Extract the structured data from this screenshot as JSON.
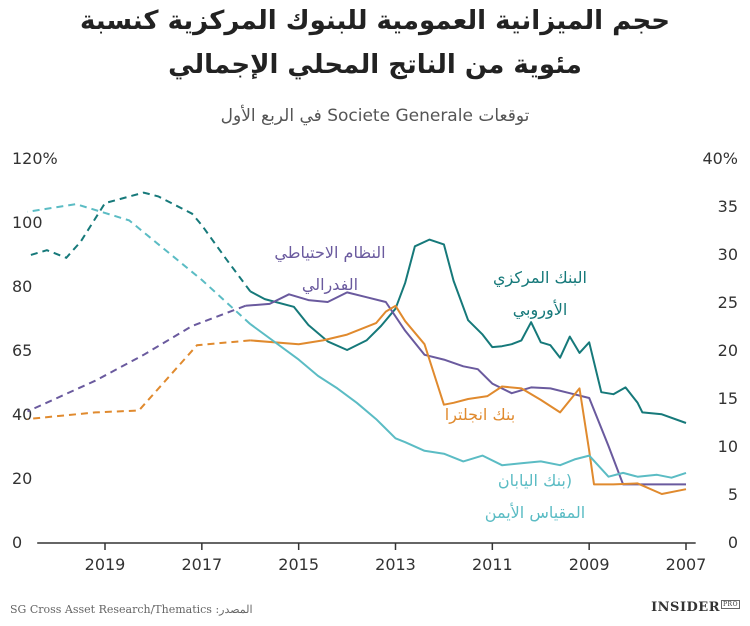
{
  "title": {
    "line1": "حجم الميزانية العمومية للبنوك المركزية كنسبة",
    "line2": "مئوية من الناتج المحلي الإجمالي"
  },
  "subtitle": "توقعات Societe Generale في الربع الأول",
  "footer": {
    "source": "SG Cross Asset Research/Thematics :المصدر",
    "brand": "INSIDER",
    "brand_badge": "PRO"
  },
  "colors": {
    "ecb": "#16797a",
    "fed": "#6a5a9e",
    "boe": "#e08a2e",
    "boj": "#5bbcc4",
    "axis": "#333333"
  },
  "chart_data": {
    "type": "line",
    "title": "حجم الميزانية العمومية للبنوك المركزية كنسبة مئوية من الناتج المحلي الإجمالي",
    "subtitle": "توقعات Societe Generale في الربع الأول",
    "x_axis": {
      "reversed": true,
      "xlim": [
        2006.9,
        2020.8
      ],
      "ticks": [
        "2019",
        "2017",
        "2015",
        "2013",
        "2011",
        "2009",
        "2007"
      ],
      "tick_values": [
        2019,
        2017,
        2015,
        2013,
        2011,
        2009,
        2007
      ]
    },
    "y_left": {
      "ticks": [
        "120%",
        "100",
        "80",
        "65",
        "40",
        "20",
        "0"
      ]
    },
    "y_right": {
      "ylim": [
        0,
        40
      ],
      "ticks": [
        "40%",
        "35",
        "30",
        "25",
        "20",
        "15",
        "10",
        "5",
        "0"
      ],
      "tick_values": [
        40,
        35,
        30,
        25,
        20,
        15,
        10,
        5,
        0
      ]
    },
    "grid": false,
    "note": "values plotted against right-hand scale (percent of GDP); dashed segments are forecasts",
    "series": [
      {
        "name": "البنك المركزي الأوروبي",
        "label_lines": [
          "البنك المركزي",
          "الأوروبي"
        ],
        "color_key": "ecb",
        "actual": {
          "x": [
            2007.0,
            2007.5,
            2007.9,
            2008.0,
            2008.25,
            2008.5,
            2008.75,
            2009.0,
            2009.2,
            2009.4,
            2009.6,
            2009.8,
            2010.0,
            2010.2,
            2010.4,
            2010.6,
            2010.8,
            2011.0,
            2011.2,
            2011.5,
            2011.8,
            2012.0,
            2012.3,
            2012.6,
            2012.8,
            2013.0,
            2013.3,
            2013.6,
            2014.0,
            2014.4,
            2014.8,
            2015.1,
            2015.7,
            2016.0
          ],
          "y": [
            12.4,
            13.3,
            13.5,
            14.5,
            16.1,
            15.4,
            15.6,
            20.8,
            19.7,
            21.4,
            19.2,
            20.5,
            20.8,
            22.9,
            21.0,
            20.6,
            20.4,
            20.3,
            21.6,
            23.1,
            27.2,
            31.0,
            31.5,
            30.8,
            27.0,
            24.3,
            22.5,
            21.0,
            20.0,
            20.9,
            22.6,
            24.5,
            25.3,
            26.1
          ]
        },
        "forecast": {
          "x": [
            2016.0,
            2016.5,
            2017.0,
            2017.2,
            2017.9,
            2018.2,
            2019.0,
            2019.5,
            2019.8,
            2020.2,
            2020.6
          ],
          "y": [
            26.1,
            29.5,
            33.0,
            34.2,
            36.0,
            36.4,
            35.3,
            31.3,
            29.6,
            30.4,
            29.8
          ]
        }
      },
      {
        "name": "النظام الاحتياطي الفدرالي",
        "label_lines": [
          "النظام الاحتياطي",
          "الفدرالي"
        ],
        "color_key": "fed",
        "actual": {
          "x": [
            2007.0,
            2007.5,
            2008.0,
            2008.3,
            2008.6,
            2009.0,
            2009.4,
            2009.8,
            2010.2,
            2010.6,
            2011.0,
            2011.3,
            2011.6,
            2012.0,
            2012.4,
            2012.8,
            2013.2,
            2013.6,
            2014.0,
            2014.4,
            2014.8,
            2015.2,
            2015.6,
            2016.1
          ],
          "y": [
            6.0,
            6.0,
            6.0,
            6.0,
            10.0,
            15.0,
            15.5,
            16.0,
            16.1,
            15.5,
            16.5,
            18.0,
            18.3,
            19.0,
            19.5,
            22.0,
            25.0,
            25.5,
            26.0,
            25.0,
            25.2,
            25.8,
            24.8,
            24.6
          ]
        },
        "forecast": {
          "x": [
            2016.1,
            2017.2,
            2018.2,
            2019.2,
            2020.6
          ],
          "y": [
            24.6,
            22.5,
            19.5,
            16.8,
            13.6
          ]
        }
      },
      {
        "name": "بنك انجلترا",
        "label_lines": [
          "بنك انجلترا"
        ],
        "color_key": "boe",
        "actual": {
          "x": [
            2007.0,
            2007.5,
            2008.0,
            2008.5,
            2008.9,
            2009.0,
            2009.2,
            2009.6,
            2010.0,
            2010.4,
            2010.8,
            2011.1,
            2011.5,
            2011.8,
            2012.0,
            2012.4,
            2012.8,
            2013.0,
            2013.2,
            2013.4,
            2014.0,
            2014.5,
            2015.0,
            2016.0
          ],
          "y": [
            5.5,
            5.0,
            6.1,
            6.0,
            6.0,
            9.5,
            16.0,
            13.5,
            14.8,
            16.0,
            16.2,
            15.2,
            14.9,
            14.5,
            14.3,
            20.6,
            23.0,
            24.6,
            24.0,
            22.8,
            21.6,
            21.0,
            20.6,
            21.0
          ]
        },
        "forecast": {
          "x": [
            2016.0,
            2017.1,
            2018.3,
            2019.2,
            2020.6
          ],
          "y": [
            21.0,
            20.5,
            13.7,
            13.5,
            12.8
          ]
        }
      },
      {
        "name": "بنك اليابان المقياس الأيمن",
        "label_lines": [
          "(بنك اليابان",
          "المقياس الأيمن"
        ],
        "color_key": "boj",
        "actual": {
          "x": [
            2007.0,
            2007.3,
            2007.6,
            2008.0,
            2008.3,
            2008.6,
            2009.0,
            2009.3,
            2009.6,
            2010.0,
            2010.4,
            2010.8,
            2011.2,
            2011.6,
            2012.0,
            2012.4,
            2012.8,
            2013.0,
            2013.4,
            2013.8,
            2014.2,
            2014.6,
            2015.0,
            2016.0
          ],
          "y": [
            7.2,
            6.7,
            7.0,
            6.8,
            7.2,
            6.8,
            9.0,
            8.6,
            8.0,
            8.4,
            8.2,
            8.0,
            9.0,
            8.4,
            9.2,
            9.5,
            10.4,
            10.8,
            12.8,
            14.5,
            16.0,
            17.3,
            19.0,
            22.7
          ]
        },
        "forecast": {
          "x": [
            2016.0,
            2017.0,
            2018.5,
            2019.6,
            2020.6
          ],
          "y": [
            22.7,
            27.3,
            33.5,
            35.2,
            34.4
          ]
        }
      }
    ]
  }
}
